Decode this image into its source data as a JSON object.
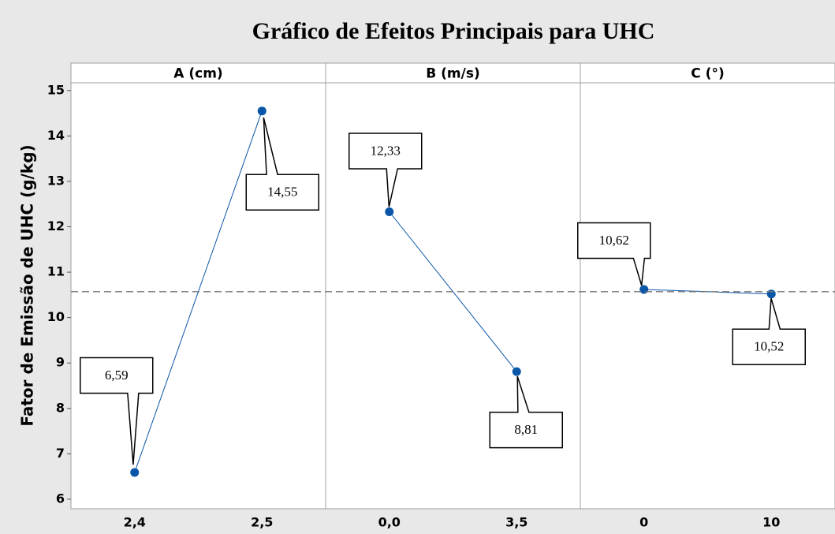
{
  "chart_data": {
    "type": "line",
    "title": "Gráfico de Efeitos Principais para UHC",
    "ylabel": "Fator de Emissão de UHC (g/kg)",
    "ylim": [
      5.79,
      15.17
    ],
    "yticks": [
      6,
      7,
      8,
      9,
      10,
      11,
      12,
      13,
      14,
      15
    ],
    "reference_line": 10.57,
    "color": "#0a56a8",
    "panels": [
      {
        "name": "A (cm)",
        "categories": [
          "2,4",
          "2,5"
        ],
        "values": [
          6.59,
          14.55
        ],
        "value_labels": [
          "6,59",
          "14,55"
        ]
      },
      {
        "name": "B (m/s)",
        "categories": [
          "0,0",
          "3,5"
        ],
        "values": [
          12.33,
          8.81
        ],
        "value_labels": [
          "12,33",
          "8,81"
        ]
      },
      {
        "name": "C (°)",
        "categories": [
          "0",
          "10"
        ],
        "values": [
          10.62,
          10.52
        ],
        "value_labels": [
          "10,62",
          "10,52"
        ]
      }
    ]
  }
}
